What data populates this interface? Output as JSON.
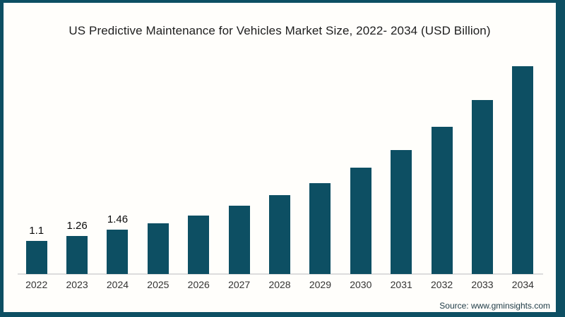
{
  "chart": {
    "title": "US Predictive Maintenance for Vehicles Market Size, 2022- 2034 (USD Billion)",
    "source": "Source: www.gminsights.com"
  },
  "colors": {
    "bar": "#0d4f63",
    "frame_border": "#0d4f63",
    "axis_line": "#dcdcdc",
    "title_text": "#1e1e1e",
    "tick_text": "#333333",
    "value_label_text": "#0a0a0a",
    "source_text": "#1c3945",
    "background": "#fffefb"
  },
  "chart_data": {
    "type": "bar",
    "title": "US Predictive Maintenance for Vehicles Market Size, 2022- 2034 (USD Billion)",
    "categories": [
      "2022",
      "2023",
      "2024",
      "2025",
      "2026",
      "2027",
      "2028",
      "2029",
      "2030",
      "2031",
      "2032",
      "2033",
      "2034"
    ],
    "values": [
      1.1,
      1.26,
      1.46,
      1.68,
      1.94,
      2.25,
      2.6,
      3.0,
      3.5,
      4.1,
      4.85,
      5.75,
      6.85
    ],
    "bar_labels": [
      "1.1",
      "1.26",
      "1.46",
      "",
      "",
      "",
      "",
      "",
      "",
      "",
      "",
      "",
      ""
    ],
    "xlabel": "",
    "ylabel": "",
    "ylim": [
      0,
      7.5
    ],
    "grid": false,
    "legend": "none",
    "bar_color": "#0d4f63",
    "source": "Source: www.gminsights.com"
  }
}
